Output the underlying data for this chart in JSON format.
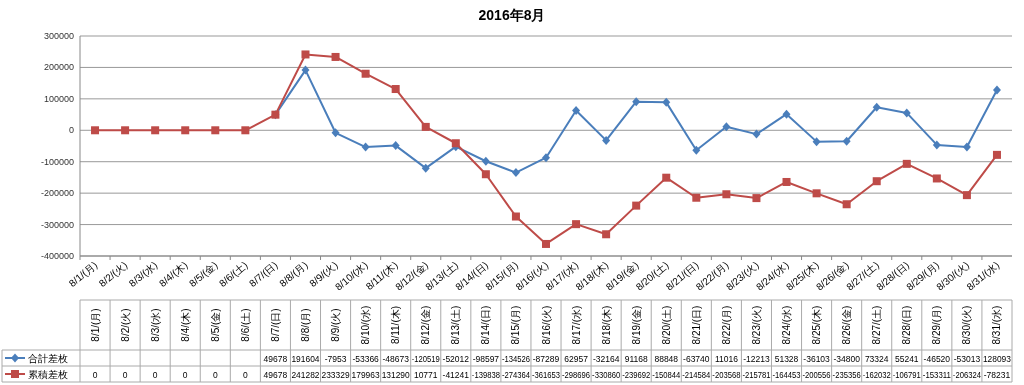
{
  "chart_data": {
    "type": "line",
    "title": "2016年8月",
    "categories": [
      "8/1/(月)",
      "8/2/(火)",
      "8/3/(水)",
      "8/4/(木)",
      "8/5/(金)",
      "8/6/(土)",
      "8/7/(日)",
      "8/8/(月)",
      "8/9/(火)",
      "8/10/(水)",
      "8/11/(木)",
      "8/12/(金)",
      "8/13/(土)",
      "8/14/(日)",
      "8/15/(月)",
      "8/16/(火)",
      "8/17/(水)",
      "8/18/(木)",
      "8/19/(金)",
      "8/20/(土)",
      "8/21/(日)",
      "8/22/(月)",
      "8/23/(火)",
      "8/24/(水)",
      "8/25/(木)",
      "8/26/(金)",
      "8/27/(土)",
      "8/28/(日)",
      "8/29/(月)",
      "8/30/(火)",
      "8/31/(水)"
    ],
    "series": [
      {
        "name": "合計差枚",
        "color": "#4a7ebb",
        "marker": "diamond",
        "values": [
          null,
          null,
          null,
          null,
          null,
          null,
          49678,
          191604,
          -7953,
          -53366,
          -48673,
          -120519,
          -52012,
          -98597,
          -134526,
          -87289,
          62957,
          -32164,
          91168,
          88848,
          -63740,
          11016,
          -12213,
          51328,
          -36103,
          -34800,
          73324,
          55241,
          -46520,
          -53013,
          128093
        ]
      },
      {
        "name": "累積差枚",
        "color": "#be4b48",
        "marker": "square",
        "values": [
          0,
          0,
          0,
          0,
          0,
          0,
          49678,
          241282,
          233329,
          179963,
          131290,
          10771,
          -41241,
          -139838,
          -274364,
          -361653,
          -298696,
          -330860,
          -239692,
          -150844,
          -214584,
          -203568,
          -215781,
          -164453,
          -200556,
          -235356,
          -162032,
          -106791,
          -153311,
          -206324,
          -78231
        ]
      }
    ],
    "ylim": [
      -400000,
      300000
    ],
    "yticks": [
      -400000,
      -300000,
      -200000,
      -100000,
      0,
      100000,
      200000,
      300000
    ],
    "grid": "y",
    "legend": "bottom",
    "data_labels": true
  }
}
